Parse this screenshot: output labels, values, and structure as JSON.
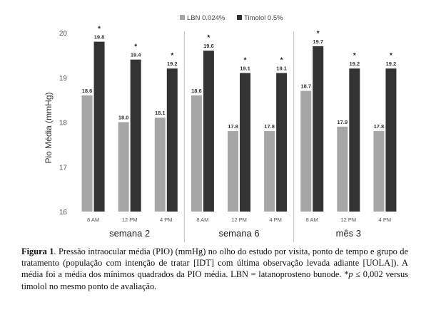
{
  "chart_data": {
    "type": "bar",
    "ylabel": "Pio Média (mmHg)",
    "ylim": [
      16,
      20
    ],
    "yticks": [
      "16",
      "17",
      "18",
      "19",
      "20"
    ],
    "legend_position": "top-center",
    "grid": false,
    "groups": [
      {
        "label": "semana 2",
        "categories": [
          "8 AM",
          "12 PM",
          "4 PM"
        ]
      },
      {
        "label": "semana 6",
        "categories": [
          "8 AM",
          "12 PM",
          "4 PM"
        ]
      },
      {
        "label": "mês 3",
        "categories": [
          "8 AM",
          "12 PM",
          "4 PM"
        ]
      }
    ],
    "series": [
      {
        "name": "LBN 0.024%",
        "color": "#a6a6a6",
        "values": [
          18.6,
          18.0,
          18.1,
          18.6,
          17.8,
          17.8,
          18.7,
          17.9,
          17.8
        ],
        "labels": [
          "18.6",
          "18.0",
          "18.1",
          "18.6",
          "17.8",
          "17.8",
          "18.7",
          "17.9",
          "17.8"
        ]
      },
      {
        "name": "Timolol 0.5%",
        "color": "#333333",
        "values": [
          19.8,
          19.4,
          19.2,
          19.6,
          19.1,
          19.1,
          19.7,
          19.2,
          19.2
        ],
        "labels": [
          "19.8",
          "19.4",
          "19.2",
          "19.6",
          "19.1",
          "19.1",
          "19.7",
          "19.2",
          "19.2"
        ]
      }
    ],
    "significance_marker": "*"
  },
  "caption": {
    "label": "Figura 1",
    "text": ". Pressão intraocular média (PIO) (mmHg) no olho do estudo por visita, ponto de tempo e grupo de tratamento (população com intenção de tratar [IDT] com última observação levada adiante [UOLA]). A média foi a média dos mínimos quadrados da PIO média. LBN = latanoprosteno bunode. *",
    "p_symbol": "p",
    "text_end": " ≤ 0,002 versus timolol no mesmo ponto de avaliação."
  }
}
